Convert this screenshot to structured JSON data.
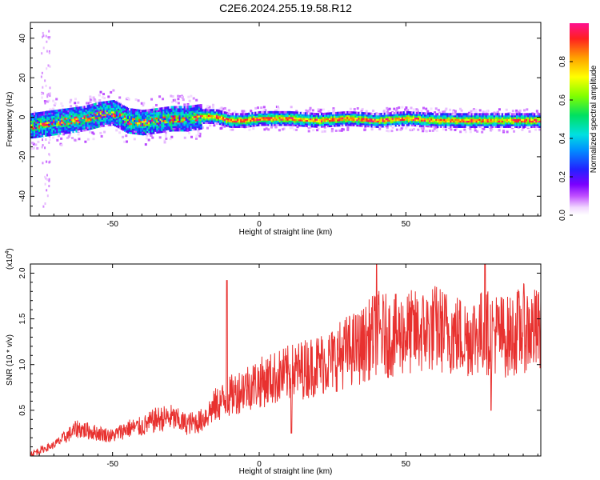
{
  "title": "C2E6.2024.255.19.58.R12",
  "colors": {
    "snr_line": "#e8312f",
    "axes": "#000000",
    "background": "#ffffff"
  },
  "chart_data": [
    {
      "type": "heatmap",
      "panel": "spectrogram",
      "xlabel": "Height of straight line (km)",
      "ylabel": "Frequency (Hz)",
      "xlim": [
        -78,
        96
      ],
      "ylim": [
        -50,
        48
      ],
      "xticks": [
        -50,
        0,
        50
      ],
      "xtick_labels": [
        "-50",
        "0",
        "50"
      ],
      "yticks": [
        -40,
        -20,
        0,
        20,
        40
      ],
      "ytick_labels": [
        "-40",
        "-20",
        "0",
        "20",
        "40"
      ],
      "colorbar": {
        "label": "Normalized spectral amplitude",
        "range": [
          0,
          1
        ],
        "ticks": [
          0.0,
          0.2,
          0.4,
          0.6,
          0.8
        ],
        "tick_labels": [
          "0.0",
          "0.2",
          "0.4",
          "0.6",
          "0.8"
        ],
        "colormap": "rainbow-white-to-magenta"
      },
      "band_center_hz": [
        [
          -75,
          -3
        ],
        [
          -70,
          -2
        ],
        [
          -65,
          -1
        ],
        [
          -60,
          0
        ],
        [
          -55,
          2
        ],
        [
          -50,
          3
        ],
        [
          -45,
          -1
        ],
        [
          -40,
          -2
        ],
        [
          -35,
          -1
        ],
        [
          -30,
          0
        ],
        [
          -25,
          0
        ],
        [
          -20,
          1
        ],
        [
          -15,
          1
        ],
        [
          -10,
          -1
        ],
        [
          -5,
          -1
        ],
        [
          0,
          0
        ],
        [
          10,
          0
        ],
        [
          20,
          -1
        ],
        [
          30,
          0
        ],
        [
          40,
          -1
        ],
        [
          50,
          0
        ],
        [
          60,
          -1
        ],
        [
          70,
          -1
        ],
        [
          80,
          -1
        ],
        [
          90,
          -1
        ]
      ],
      "band_width_hz": 4,
      "grid": false
    },
    {
      "type": "line",
      "panel": "snr",
      "xlabel": "Height of straight line (km)",
      "ylabel": "SNR (10 * v/v)",
      "y_multiplier_label": "(x10",
      "y_multiplier_exponent": "4",
      "y_multiplier_close": ")",
      "xlim": [
        -78,
        96
      ],
      "ylim": [
        0,
        2.1
      ],
      "xticks": [
        -50,
        0,
        50
      ],
      "xtick_labels": [
        "-50",
        "0",
        "50"
      ],
      "yticks": [
        0.5,
        1.0,
        1.5,
        2.0
      ],
      "ytick_labels": [
        "0.5",
        "1.0",
        "1.5",
        "2.0"
      ],
      "envelope": {
        "x": [
          -78,
          -70,
          -62,
          -55,
          -50,
          -45,
          -40,
          -35,
          -30,
          -25,
          -20,
          -15,
          -10,
          -5,
          0,
          5,
          10,
          15,
          20,
          25,
          30,
          35,
          40,
          45,
          50,
          55,
          60,
          65,
          70,
          75,
          80,
          85,
          90,
          96
        ],
        "y": [
          0.02,
          0.12,
          0.3,
          0.25,
          0.22,
          0.3,
          0.32,
          0.4,
          0.42,
          0.35,
          0.38,
          0.55,
          0.65,
          0.75,
          0.8,
          0.85,
          0.9,
          0.95,
          1.0,
          1.05,
          1.15,
          1.2,
          1.35,
          1.3,
          1.35,
          1.35,
          1.4,
          1.35,
          1.3,
          1.35,
          1.35,
          1.3,
          1.4,
          1.35
        ]
      },
      "peaks": [
        {
          "x": -11,
          "y": 1.92
        },
        {
          "x": 40,
          "y": 2.1
        },
        {
          "x": 77,
          "y": 2.1
        },
        {
          "x": 79,
          "y": 0.5
        },
        {
          "x": 11,
          "y": 0.25
        }
      ],
      "grid": false
    }
  ]
}
